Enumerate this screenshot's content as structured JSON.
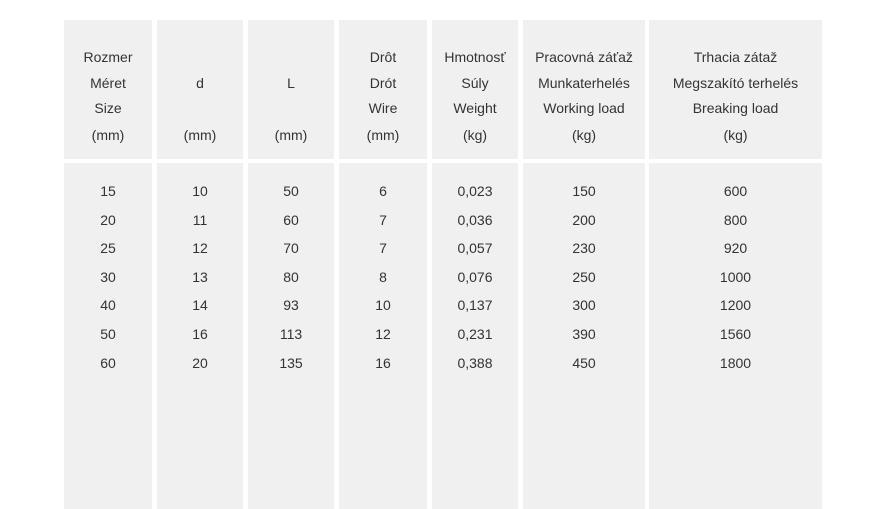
{
  "table": {
    "columns": [
      {
        "header": [
          "Rozmer",
          "Méret",
          "Size",
          "(mm)"
        ],
        "values": [
          "15",
          "20",
          "25",
          "30",
          "40",
          "50",
          "60"
        ]
      },
      {
        "header": [
          "",
          "d",
          "",
          "(mm)"
        ],
        "values": [
          "10",
          "11",
          "12",
          "13",
          "14",
          "16",
          "20"
        ]
      },
      {
        "header": [
          "",
          "L",
          "",
          "(mm)"
        ],
        "values": [
          "50",
          "60",
          "70",
          "80",
          "93",
          "113",
          "135"
        ]
      },
      {
        "header": [
          "Drôt",
          "Drót",
          "Wire",
          "(mm)"
        ],
        "values": [
          "6",
          "7",
          "7",
          "8",
          "10",
          "12",
          "16"
        ]
      },
      {
        "header": [
          "Hmotnosť",
          "Súly",
          "Weight",
          "(kg)"
        ],
        "values": [
          "0,023",
          "0,036",
          "0,057",
          "0,076",
          "0,137",
          "0,231",
          "0,388"
        ]
      },
      {
        "header": [
          "Pracovná záťaž",
          "Munkaterhelés",
          "Working load",
          "(kg)"
        ],
        "values": [
          "150",
          "200",
          "230",
          "250",
          "300",
          "390",
          "450"
        ]
      },
      {
        "header": [
          "Trhacia zátaž",
          "Megszakító terhelés",
          "Breaking load",
          "(kg)"
        ],
        "values": [
          "600",
          "800",
          "920",
          "1000",
          "1200",
          "1560",
          "1800"
        ]
      }
    ]
  }
}
